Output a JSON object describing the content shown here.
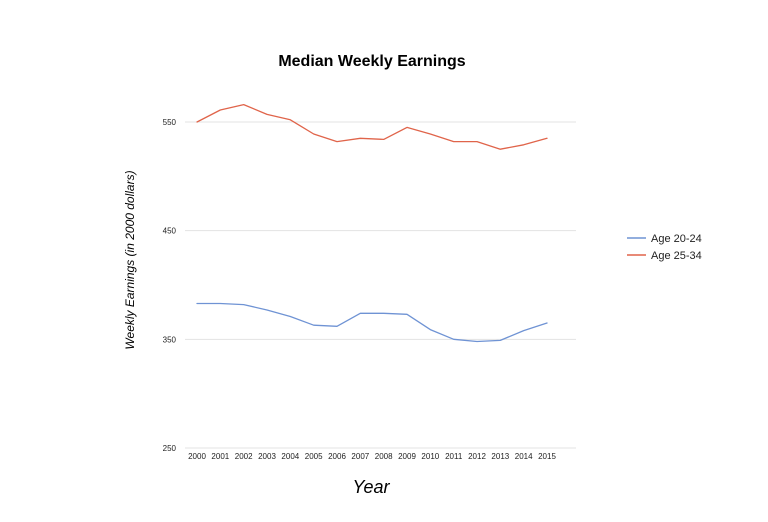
{
  "chart_data": {
    "type": "line",
    "title": "Median Weekly Earnings",
    "xlabel": "Year",
    "ylabel": "Weekly Earnings (in 2000 dollars)",
    "x": [
      "2000",
      "2001",
      "2002",
      "2003",
      "2004",
      "2005",
      "2006",
      "2007",
      "2008",
      "2009",
      "2010",
      "2011",
      "2012",
      "2013",
      "2014",
      "2015"
    ],
    "ylim": [
      250,
      560
    ],
    "yticks": [
      250,
      350,
      450,
      550
    ],
    "grid": true,
    "legend_position": "right",
    "series": [
      {
        "name": "Age 20-24",
        "color": "#6f93d4",
        "values": [
          383,
          383,
          382,
          377,
          371,
          363,
          362,
          374,
          374,
          373,
          359,
          350,
          348,
          349,
          358,
          365
        ]
      },
      {
        "name": "Age 25-34",
        "color": "#e0644a",
        "values": [
          550,
          561,
          566,
          557,
          552,
          539,
          532,
          535,
          534,
          545,
          539,
          532,
          532,
          525,
          529,
          535
        ]
      }
    ]
  }
}
